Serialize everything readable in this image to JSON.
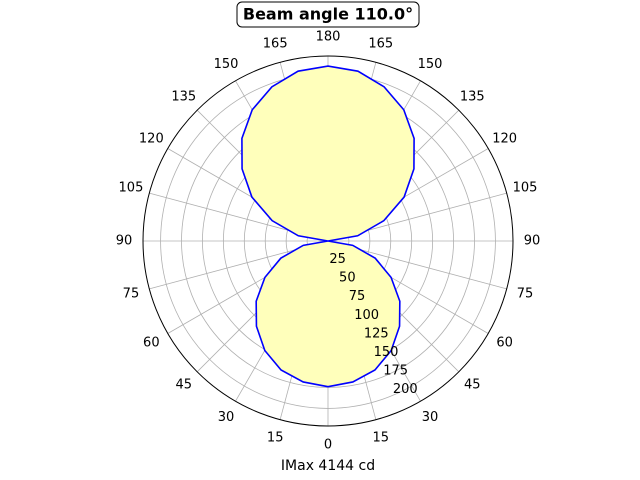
{
  "chart_data": {
    "type": "polar",
    "title": "Beam angle 110.0°",
    "xlabel": "IMax 4144 cd",
    "x": [
      0,
      10,
      20,
      30,
      40,
      50,
      60,
      70,
      80,
      90,
      100,
      110,
      120,
      130,
      140,
      150,
      160,
      170,
      180,
      190,
      200,
      210,
      220,
      230,
      240,
      250,
      260,
      270,
      280,
      290,
      300,
      310,
      320,
      330,
      340,
      350,
      360
    ],
    "series": [
      {
        "color": "#0000ff",
        "fill": "#ffffbb",
        "values": [
          174,
          171,
          164,
          151,
          133,
          112,
          87,
          60,
          30,
          0,
          36,
          71,
          105,
          134,
          160,
          181,
          196,
          206,
          209,
          206,
          196,
          181,
          160,
          134,
          105,
          71,
          36,
          0,
          30,
          60,
          87,
          112,
          133,
          151,
          164,
          171,
          174
        ]
      }
    ],
    "ylim": [
      0,
      221
    ],
    "yticks": [
      25,
      50,
      75,
      100,
      125,
      150,
      175,
      200
    ],
    "xticks": [
      0,
      15,
      30,
      45,
      60,
      75,
      90,
      105,
      120,
      135,
      150,
      165,
      180,
      {
        "value": 195,
        "label": "165"
      },
      {
        "value": 210,
        "label": "150"
      },
      {
        "value": 225,
        "label": "135"
      },
      {
        "value": 240,
        "label": "120"
      },
      {
        "value": 255,
        "label": "105"
      },
      {
        "value": 270,
        "label": "90"
      },
      {
        "value": 285,
        "label": "75"
      },
      {
        "value": 300,
        "label": "60"
      },
      {
        "value": 315,
        "label": "45"
      },
      {
        "value": 330,
        "label": "30"
      },
      {
        "value": 345,
        "label": "15"
      }
    ],
    "grid": true
  }
}
